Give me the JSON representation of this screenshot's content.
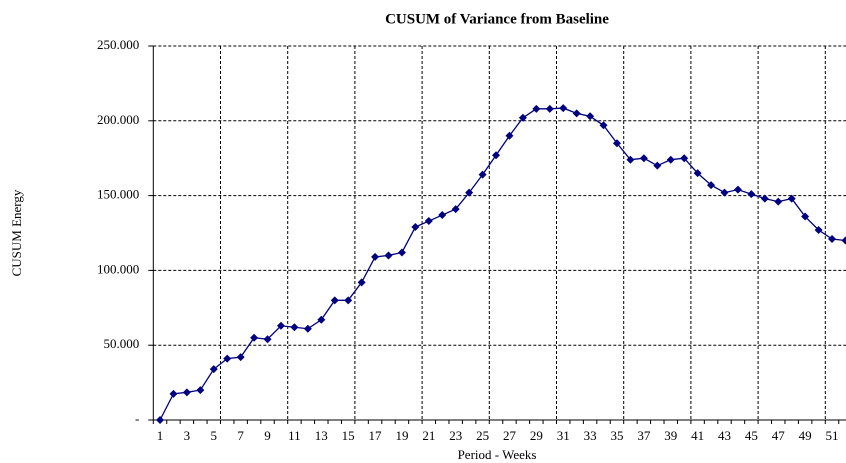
{
  "chart_data": {
    "type": "line",
    "title": "CUSUM of Variance from Baseline",
    "x_label": "Period - Weeks",
    "y_label": "CUSUM Energy",
    "categories": [
      "1",
      null,
      "3",
      null,
      "5",
      null,
      "7",
      null,
      "9",
      null,
      "11",
      null,
      "13",
      null,
      "15",
      null,
      "17",
      null,
      "19",
      null,
      "21",
      null,
      "23",
      null,
      "25",
      null,
      "27",
      null,
      "29",
      null,
      "31",
      null,
      "33",
      null,
      "35",
      null,
      "37",
      null,
      "39",
      null,
      "41",
      null,
      "43",
      null,
      "45",
      null,
      "47",
      null,
      "49",
      null,
      "51",
      null
    ],
    "series": [
      {
        "name": "CUSUM",
        "color": "#000080",
        "values": [
          0,
          17.5,
          18.5,
          20,
          34,
          41,
          42,
          55,
          54,
          63,
          62,
          61,
          67,
          80,
          80,
          92,
          109,
          110,
          112,
          129,
          133,
          137,
          141,
          152,
          164,
          177,
          190,
          202,
          208,
          208,
          208.5,
          205,
          203,
          197,
          185,
          174,
          175,
          170,
          174,
          175,
          165,
          157,
          152,
          154,
          151,
          148,
          146,
          148,
          136,
          127,
          121,
          120
        ]
      }
    ],
    "ylim": [
      0,
      250
    ],
    "yticks": [
      {
        "value": 0,
        "label": "-"
      },
      {
        "value": 50,
        "label": "50.000"
      },
      {
        "value": 100,
        "label": "100.000"
      },
      {
        "value": 150,
        "label": "150.000"
      },
      {
        "value": 200,
        "label": "200.000"
      },
      {
        "value": 250,
        "label": "250.000"
      }
    ],
    "grid": true
  }
}
